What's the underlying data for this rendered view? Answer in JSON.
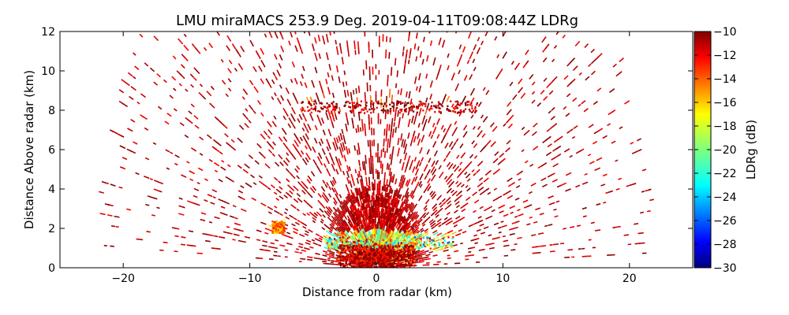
{
  "chart_data": {
    "type": "heatmap",
    "title": "LMU miraMACS 253.9 Deg. 2019-04-11T09:08:44Z  LDRg",
    "xlabel": "Distance from radar (km)",
    "ylabel": "Distance Above radar  (km)",
    "xlim": [
      -25,
      25
    ],
    "ylim": [
      0,
      12
    ],
    "x_ticks": [
      -20,
      -10,
      0,
      10,
      20
    ],
    "y_ticks": [
      0,
      2,
      4,
      6,
      8,
      10,
      12
    ],
    "colorbar": {
      "label": "LDRg (dB)",
      "range": [
        -30,
        -10
      ],
      "ticks": [
        -10,
        -12,
        -14,
        -16,
        -18,
        -20,
        -22,
        -24,
        -26,
        -28,
        -30
      ],
      "colormap": "jet"
    },
    "scan": {
      "max_range_km": 22,
      "min_elevation_deg": 2,
      "max_elevation_deg": 178,
      "dominant_value_db": -10
    },
    "features": [
      {
        "name": "mid-level layer",
        "x_range": [
          -6,
          8
        ],
        "height_km": 8.2,
        "value_db": -11
      },
      {
        "name": "boundary layer",
        "x_range": [
          -4,
          6
        ],
        "height_km": 1.3,
        "value_db": -18
      },
      {
        "name": "near-radar clutter",
        "x_range": [
          -3,
          3
        ],
        "height_km": 0.6,
        "value_db": -11
      },
      {
        "name": "left patch",
        "x_range": [
          -8.3,
          -7.3
        ],
        "height_km": 2.1,
        "value_db": -15
      }
    ]
  }
}
